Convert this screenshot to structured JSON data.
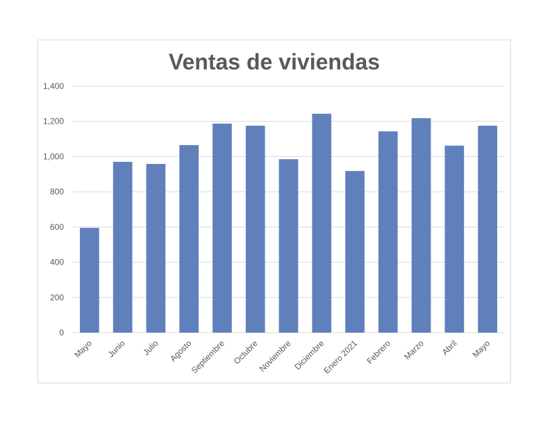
{
  "chart_data": {
    "type": "bar",
    "title": "Ventas de viviendas",
    "xlabel": "",
    "ylabel": "",
    "categories": [
      "Mayo",
      "Junio",
      "Julio",
      "Agosto",
      "Septiembre",
      "Octubre",
      "Noviembre",
      "Diciembre",
      "Enero 2021",
      "Febrero",
      "Marzo",
      "Abril",
      "Mayo"
    ],
    "values": [
      595,
      970,
      958,
      1065,
      1187,
      1175,
      985,
      1243,
      918,
      1143,
      1218,
      1062,
      1175
    ],
    "ylim": [
      0,
      1400
    ],
    "yticks": [
      "0",
      "200",
      "400",
      "600",
      "800",
      "1,000",
      "1,200",
      "1,400"
    ],
    "grid": true,
    "legend": "none",
    "colors": {
      "bar": "#6080bc",
      "grid": "#d9d9d9",
      "text": "#595959",
      "frame": "#d9d9d9"
    }
  }
}
